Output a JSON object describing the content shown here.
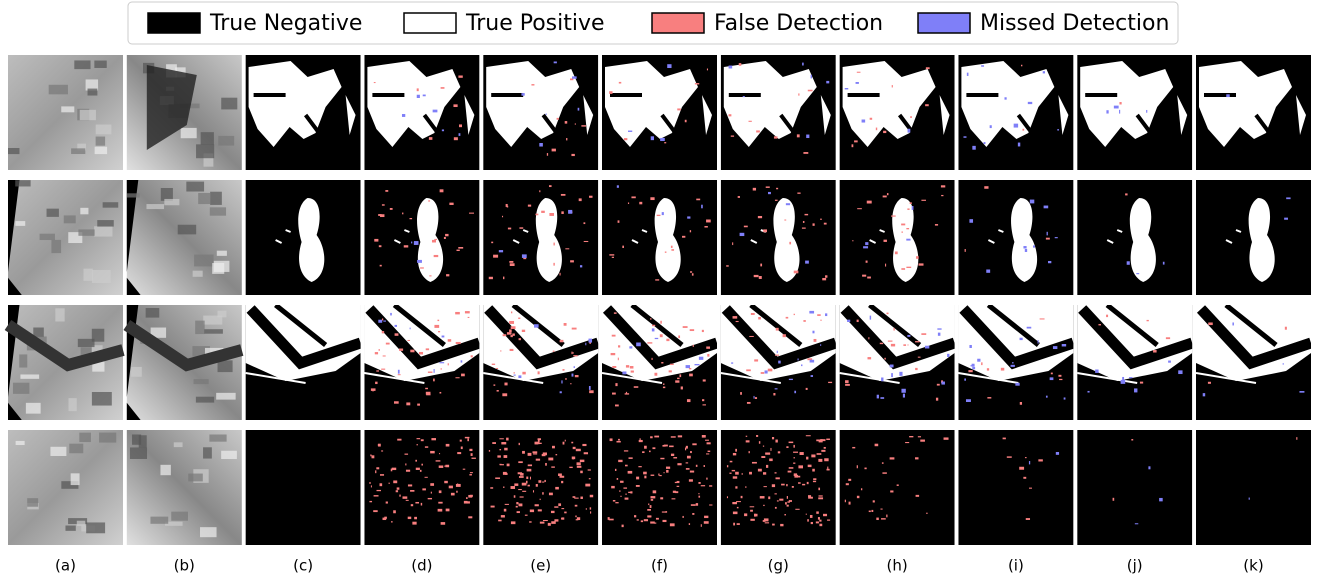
{
  "legend": {
    "items": [
      {
        "label": "True Negative",
        "color": "#000000"
      },
      {
        "label": "True Positive",
        "color": "#ffffff"
      },
      {
        "label": "False Detection",
        "color": "#f87f7f"
      },
      {
        "label": "Missed Detection",
        "color": "#7f7ff8"
      }
    ]
  },
  "columns": [
    "(a)",
    "(b)",
    "(c)",
    "(d)",
    "(e)",
    "(f)",
    "(g)",
    "(h)",
    "(i)",
    "(j)",
    "(k)"
  ]
}
